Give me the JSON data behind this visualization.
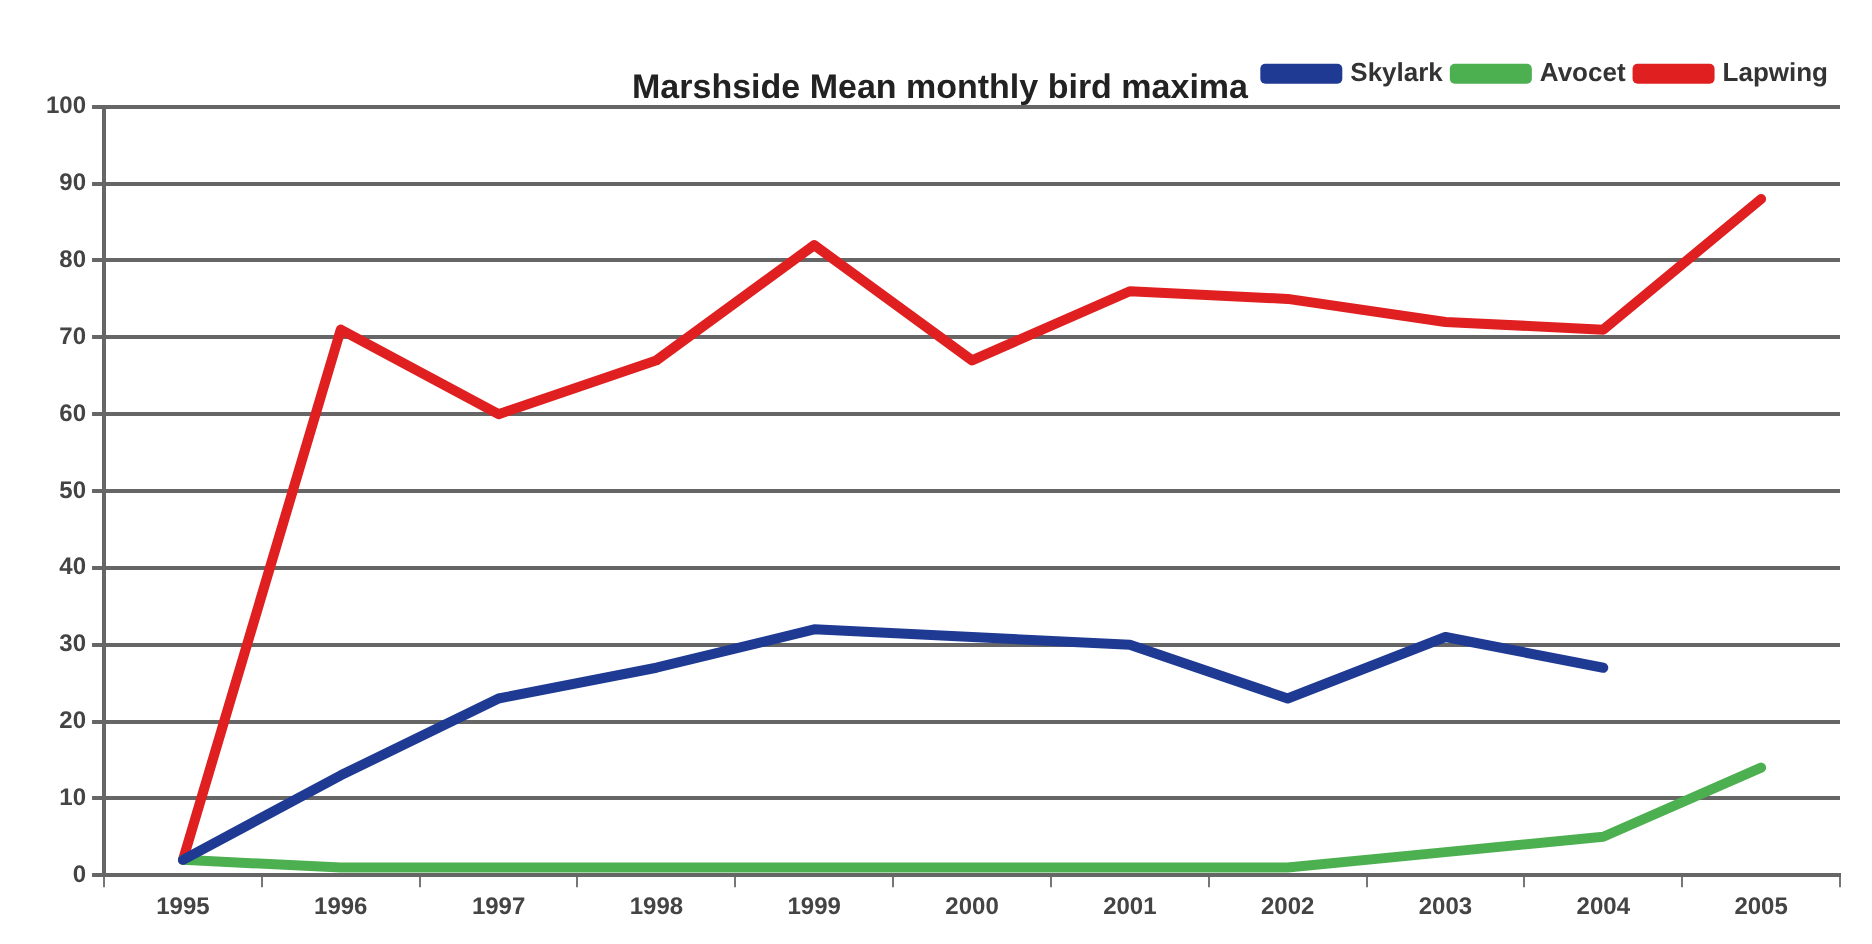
{
  "chart_data": {
    "type": "line",
    "title": "Marshside Mean monthly bird maxima",
    "categories": [
      "1995",
      "1996",
      "1997",
      "1998",
      "1999",
      "2000",
      "2001",
      "2002",
      "2003",
      "2004",
      "2005"
    ],
    "series": [
      {
        "name": "Skylark",
        "color": "#1f3a93",
        "values": [
          2,
          13,
          23,
          27,
          32,
          31,
          30,
          23,
          31,
          27,
          null
        ]
      },
      {
        "name": "Avocet",
        "color": "#4caf50",
        "values": [
          2,
          1,
          1,
          1,
          1,
          1,
          1,
          1,
          3,
          5,
          14
        ]
      },
      {
        "name": "Lapwing",
        "color": "#e02020",
        "values": [
          2,
          71,
          60,
          67,
          82,
          67,
          76,
          75,
          72,
          71,
          88
        ]
      }
    ],
    "ylim": [
      0,
      100
    ],
    "yticks": [
      0,
      10,
      20,
      30,
      40,
      50,
      60,
      70,
      80,
      90,
      100
    ],
    "grid": "y",
    "legend": "top right",
    "marker": "none",
    "line_style": "solid"
  }
}
